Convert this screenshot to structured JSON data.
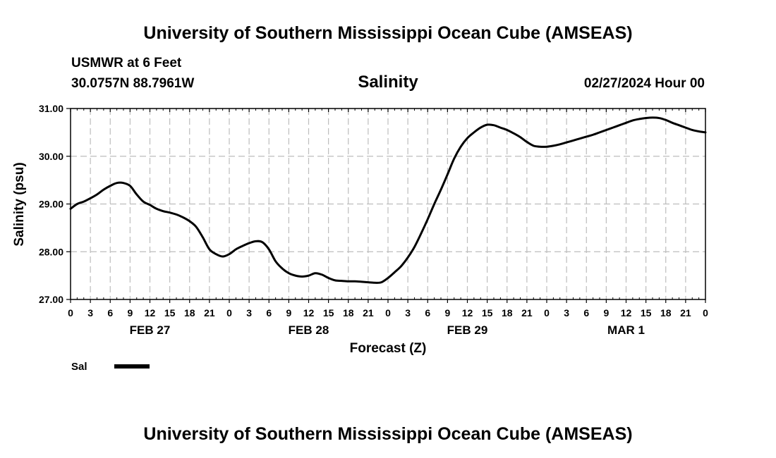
{
  "header": {
    "title": "University of Southern Mississippi Ocean Cube (AMSEAS)",
    "station": "USMWR at 6 Feet",
    "coords": "30.0757N  88.7961W",
    "plot_title": "Salinity",
    "run_time": "02/27/2024 Hour 00"
  },
  "footer": {
    "title": "University of Southern Mississippi Ocean Cube (AMSEAS)"
  },
  "chart_data": {
    "type": "line",
    "title": "Salinity",
    "xlabel": "Forecast (Z)",
    "ylabel": "Salinity (psu)",
    "xlim": [
      0,
      96
    ],
    "ylim": [
      27,
      31
    ],
    "yticks": [
      "27.00",
      "28.00",
      "29.00",
      "30.00",
      "31.00"
    ],
    "xtick_labels": [
      "0",
      "3",
      "6",
      "9",
      "12",
      "15",
      "18",
      "21",
      "0",
      "3",
      "6",
      "9",
      "12",
      "15",
      "18",
      "21",
      "0",
      "3",
      "6",
      "9",
      "12",
      "15",
      "18",
      "21",
      "0",
      "3",
      "6",
      "9",
      "12",
      "15",
      "18",
      "21",
      "0"
    ],
    "date_labels": [
      {
        "hour": 12,
        "label": "FEB 27"
      },
      {
        "hour": 36,
        "label": "FEB 28"
      },
      {
        "hour": 60,
        "label": "FEB 29"
      },
      {
        "hour": 84,
        "label": "MAR 1"
      }
    ],
    "grid": true,
    "legend": [
      {
        "name": "Sal",
        "color": "#000000"
      }
    ],
    "series": [
      {
        "name": "Sal",
        "color": "#000000",
        "x": [
          0,
          1,
          2,
          3,
          4,
          5,
          6,
          7,
          8,
          9,
          10,
          11,
          12,
          13,
          14,
          15,
          16,
          17,
          18,
          19,
          20,
          21,
          22,
          23,
          24,
          25,
          26,
          27,
          28,
          29,
          30,
          31,
          32,
          33,
          34,
          35,
          36,
          37,
          38,
          39,
          40,
          41,
          42,
          43,
          44,
          45,
          46,
          47,
          48,
          49,
          50,
          51,
          52,
          53,
          54,
          55,
          56,
          57,
          58,
          59,
          60,
          61,
          62,
          63,
          64,
          65,
          66,
          67,
          68,
          69,
          70,
          71,
          72,
          73,
          74,
          75,
          76,
          77,
          78,
          79,
          80,
          81,
          82,
          83,
          84,
          85,
          86,
          87,
          88,
          89,
          90,
          91,
          92,
          93,
          94,
          95,
          96
        ],
        "values": [
          28.9,
          29.0,
          29.05,
          29.12,
          29.2,
          29.3,
          29.38,
          29.44,
          29.44,
          29.38,
          29.2,
          29.05,
          28.98,
          28.9,
          28.85,
          28.82,
          28.78,
          28.72,
          28.64,
          28.52,
          28.3,
          28.05,
          27.95,
          27.9,
          27.95,
          28.05,
          28.12,
          28.18,
          28.22,
          28.2,
          28.05,
          27.8,
          27.65,
          27.55,
          27.5,
          27.48,
          27.5,
          27.55,
          27.52,
          27.45,
          27.4,
          27.39,
          27.38,
          27.38,
          27.37,
          27.36,
          27.35,
          27.36,
          27.45,
          27.57,
          27.7,
          27.88,
          28.1,
          28.38,
          28.68,
          29.0,
          29.3,
          29.62,
          29.95,
          30.2,
          30.38,
          30.5,
          30.6,
          30.66,
          30.65,
          30.6,
          30.55,
          30.48,
          30.4,
          30.3,
          30.22,
          30.2,
          30.2,
          30.22,
          30.25,
          30.29,
          30.33,
          30.37,
          30.41,
          30.45,
          30.5,
          30.55,
          30.6,
          30.65,
          30.7,
          30.75,
          30.78,
          30.8,
          30.81,
          30.8,
          30.76,
          30.7,
          30.65,
          30.6,
          30.55,
          30.52,
          30.5
        ]
      }
    ]
  }
}
